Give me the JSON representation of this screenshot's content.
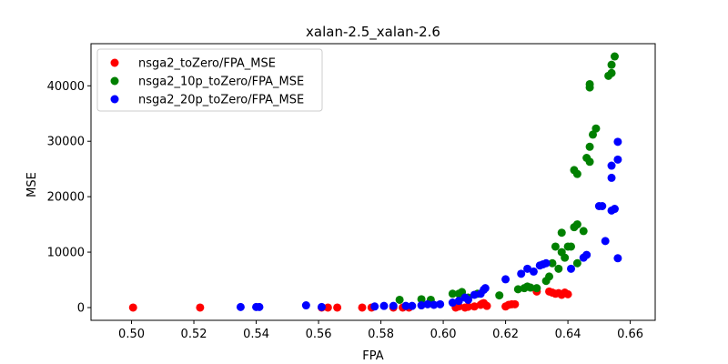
{
  "chart_data": {
    "type": "scatter",
    "title": "xalan-2.5_xalan-2.6",
    "xlabel": "FPA",
    "ylabel": "MSE",
    "xlim": [
      0.487,
      0.668
    ],
    "ylim": [
      -2300,
      47600
    ],
    "xticks": [
      0.5,
      0.52,
      0.54,
      0.56,
      0.58,
      0.6,
      0.62,
      0.64,
      0.66
    ],
    "xtick_labels": [
      "0.50",
      "0.52",
      "0.54",
      "0.56",
      "0.58",
      "0.60",
      "0.62",
      "0.64",
      "0.66"
    ],
    "yticks": [
      0,
      10000,
      20000,
      30000,
      40000
    ],
    "ytick_labels": [
      "0",
      "10000",
      "20000",
      "30000",
      "40000"
    ],
    "grid": false,
    "legend_position": "top-left",
    "series": [
      {
        "name": "nsga2_toZero/FPA_MSE",
        "color": "#ff0000",
        "points": [
          [
            0.5005,
            0
          ],
          [
            0.522,
            0
          ],
          [
            0.561,
            0
          ],
          [
            0.563,
            0
          ],
          [
            0.566,
            0
          ],
          [
            0.574,
            0
          ],
          [
            0.577,
            0
          ],
          [
            0.584,
            0
          ],
          [
            0.587,
            0
          ],
          [
            0.589,
            0
          ],
          [
            0.604,
            0
          ],
          [
            0.605,
            200
          ],
          [
            0.607,
            0
          ],
          [
            0.608,
            150
          ],
          [
            0.61,
            200
          ],
          [
            0.612,
            500
          ],
          [
            0.6125,
            700
          ],
          [
            0.613,
            800
          ],
          [
            0.614,
            300
          ],
          [
            0.62,
            200
          ],
          [
            0.621,
            500
          ],
          [
            0.622,
            600
          ],
          [
            0.623,
            600
          ],
          [
            0.63,
            2900
          ],
          [
            0.634,
            2900
          ],
          [
            0.635,
            2700
          ],
          [
            0.636,
            2500
          ],
          [
            0.637,
            2600
          ],
          [
            0.638,
            2300
          ],
          [
            0.639,
            2700
          ],
          [
            0.64,
            2400
          ]
        ]
      },
      {
        "name": "nsga2_10p_toZero/FPA_MSE",
        "color": "#008000",
        "points": [
          [
            0.586,
            1400
          ],
          [
            0.593,
            1500
          ],
          [
            0.596,
            1400
          ],
          [
            0.603,
            2500
          ],
          [
            0.605,
            2500
          ],
          [
            0.606,
            2800
          ],
          [
            0.608,
            1800
          ],
          [
            0.611,
            2500
          ],
          [
            0.618,
            2200
          ],
          [
            0.624,
            3300
          ],
          [
            0.626,
            3500
          ],
          [
            0.627,
            3800
          ],
          [
            0.628,
            3600
          ],
          [
            0.63,
            3500
          ],
          [
            0.633,
            4800
          ],
          [
            0.634,
            5600
          ],
          [
            0.635,
            8000
          ],
          [
            0.636,
            11000
          ],
          [
            0.637,
            7000
          ],
          [
            0.638,
            10000
          ],
          [
            0.638,
            13500
          ],
          [
            0.639,
            9000
          ],
          [
            0.64,
            11000
          ],
          [
            0.641,
            11000
          ],
          [
            0.642,
            14500
          ],
          [
            0.643,
            8000
          ],
          [
            0.643,
            15000
          ],
          [
            0.645,
            13800
          ],
          [
            0.642,
            24800
          ],
          [
            0.643,
            24100
          ],
          [
            0.646,
            27000
          ],
          [
            0.647,
            29000
          ],
          [
            0.647,
            26300
          ],
          [
            0.648,
            31200
          ],
          [
            0.649,
            32300
          ],
          [
            0.647,
            39700
          ],
          [
            0.647,
            40300
          ],
          [
            0.653,
            41800
          ],
          [
            0.654,
            42300
          ],
          [
            0.654,
            43800
          ],
          [
            0.655,
            45300
          ]
        ]
      },
      {
        "name": "nsga2_20p_toZero/FPA_MSE",
        "color": "#0000ff",
        "points": [
          [
            0.535,
            100
          ],
          [
            0.54,
            100
          ],
          [
            0.541,
            100
          ],
          [
            0.556,
            400
          ],
          [
            0.561,
            100
          ],
          [
            0.578,
            200
          ],
          [
            0.581,
            300
          ],
          [
            0.584,
            300
          ],
          [
            0.588,
            300
          ],
          [
            0.59,
            300
          ],
          [
            0.593,
            400
          ],
          [
            0.595,
            600
          ],
          [
            0.597,
            500
          ],
          [
            0.599,
            600
          ],
          [
            0.603,
            900
          ],
          [
            0.605,
            1200
          ],
          [
            0.607,
            1800
          ],
          [
            0.608,
            1400
          ],
          [
            0.61,
            2300
          ],
          [
            0.612,
            2500
          ],
          [
            0.613,
            3200
          ],
          [
            0.6135,
            3500
          ],
          [
            0.62,
            5100
          ],
          [
            0.625,
            6100
          ],
          [
            0.627,
            7000
          ],
          [
            0.629,
            6500
          ],
          [
            0.631,
            7600
          ],
          [
            0.632,
            7800
          ],
          [
            0.633,
            8000
          ],
          [
            0.641,
            7000
          ],
          [
            0.645,
            9000
          ],
          [
            0.646,
            9500
          ],
          [
            0.65,
            18300
          ],
          [
            0.651,
            18300
          ],
          [
            0.652,
            12000
          ],
          [
            0.654,
            17500
          ],
          [
            0.655,
            17800
          ],
          [
            0.654,
            23400
          ],
          [
            0.654,
            25600
          ],
          [
            0.656,
            26700
          ],
          [
            0.656,
            29900
          ],
          [
            0.656,
            8900
          ]
        ]
      }
    ]
  }
}
